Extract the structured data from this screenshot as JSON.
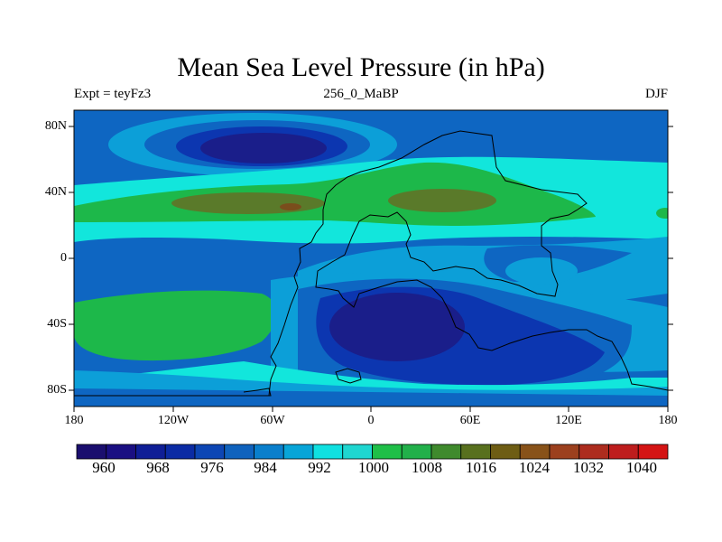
{
  "header": {
    "title": "Mean Sea Level Pressure (in hPa)",
    "left_label": "Expt = teyFz3",
    "center_label": "256_0_MaBP",
    "right_label": "DJF"
  },
  "map": {
    "lat_labels": [
      "80N",
      "40N",
      "0",
      "40S",
      "80S"
    ],
    "lon_labels": [
      "180",
      "120W",
      "60W",
      "0",
      "60E",
      "120E",
      "180"
    ]
  },
  "colorbar": {
    "colors": [
      "#1a0e6e",
      "#1a0f82",
      "#0f1e96",
      "#0b2ba4",
      "#0d46b4",
      "#0f62bd",
      "#0a7fcc",
      "#08a5d8",
      "#10e0e0",
      "#1fd6d0",
      "#1fbf48",
      "#22b04a",
      "#3f8a2d",
      "#58701e",
      "#6e5d14",
      "#885219",
      "#9c401e",
      "#ad2c1e",
      "#be1d1d",
      "#d41414"
    ],
    "labels": [
      "960",
      "968",
      "976",
      "984",
      "992",
      "1000",
      "1008",
      "1016",
      "1024",
      "1032",
      "1040"
    ]
  },
  "legend_fills": {
    "deep_low": "#1a1e8a",
    "low": "#0c36b0",
    "mid_low": "#0e66c2",
    "light": "#0c9fd8",
    "neutral": "#12e6dc",
    "green_high": "#1db84a",
    "olive_high": "#5a7a2a",
    "brown_high": "#7a4d1c"
  }
}
